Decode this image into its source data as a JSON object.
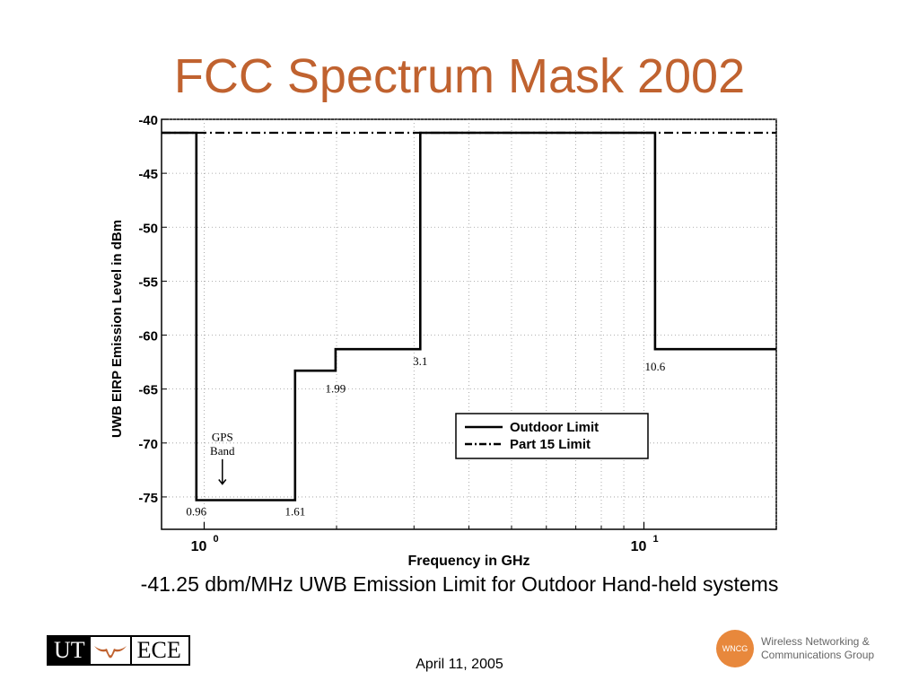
{
  "slide": {
    "title": "FCC Spectrum Mask 2002",
    "caption": "-41.25 dbm/MHz UWB Emission Limit for Outdoor Hand-held systems",
    "date": "April 11, 2005"
  },
  "logos": {
    "ut_left": "UT",
    "ut_right": "ECE",
    "wncg_mark": "WNCG",
    "wncg_line1": "Wireless Networking &",
    "wncg_line2": "Communications Group",
    "accent": "#c0622f",
    "wncg_color": "#e8883c"
  },
  "chart_data": {
    "type": "line",
    "xscale": "log",
    "xlim": [
      0.8,
      20
    ],
    "ylim": [
      -78,
      -40
    ],
    "grid": true,
    "xlabel": "Frequency in GHz",
    "ylabel": "UWB EIRP Emission Level in dBm",
    "yticks": [
      -40,
      -45,
      -50,
      -55,
      -60,
      -65,
      -70,
      -75
    ],
    "xticks": [
      {
        "value": 1,
        "base": "10",
        "exp": "0"
      },
      {
        "value": 10,
        "base": "10",
        "exp": "1"
      }
    ],
    "legend": "center-right",
    "series": [
      {
        "name": "Outdoor Limit",
        "style": "solid",
        "x": [
          0.8,
          0.96,
          0.96,
          1.61,
          1.61,
          1.99,
          1.99,
          3.1,
          3.1,
          10.6,
          10.6,
          20
        ],
        "y": [
          -41.25,
          -41.25,
          -75.3,
          -75.3,
          -63.3,
          -63.3,
          -61.3,
          -61.3,
          -41.25,
          -41.25,
          -61.3,
          -61.3
        ]
      },
      {
        "name": "Part 15 Limit",
        "style": "dashdot",
        "x": [
          0.8,
          20
        ],
        "y": [
          -41.25,
          -41.25
        ]
      }
    ],
    "annotations": [
      {
        "text": "0.96",
        "x": 0.96,
        "y": -76.2
      },
      {
        "text": "1.61",
        "x": 1.61,
        "y": -76.2
      },
      {
        "text": "1.99",
        "x": 1.99,
        "y": -64.8
      },
      {
        "text": "3.1",
        "x": 3.1,
        "y": -62.3
      },
      {
        "text": "10.6",
        "x": 10.6,
        "y": -62.8
      },
      {
        "text": "GPS",
        "x": 1.1,
        "y": -69.3
      },
      {
        "text": "Band",
        "x": 1.1,
        "y": -70.6
      }
    ]
  }
}
